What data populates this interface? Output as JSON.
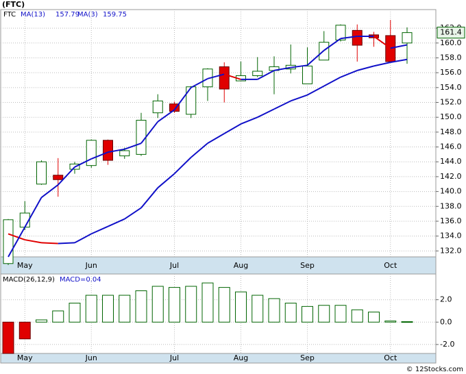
{
  "chart_data": [
    {
      "type": "candlestick",
      "title": "(FTC)",
      "symbol": "FTC",
      "categories": [
        null,
        "May",
        null,
        null,
        null,
        "Jun",
        null,
        null,
        null,
        null,
        "Jul",
        null,
        null,
        null,
        "Aug",
        null,
        null,
        null,
        "Sep",
        null,
        null,
        null,
        null,
        "Oct",
        null
      ],
      "open": [
        130.3,
        135.2,
        141.0,
        142.2,
        143.0,
        143.5,
        146.9,
        144.8,
        145.0,
        150.6,
        151.8,
        150.4,
        154.1,
        156.8,
        154.9,
        155.6,
        156.3,
        156.5,
        154.5,
        157.7,
        160.4,
        161.7,
        161.1,
        161.0,
        160.0
      ],
      "high": [
        136.3,
        138.7,
        144.2,
        144.5,
        144.0,
        147.0,
        147.0,
        145.9,
        150.6,
        153.1,
        152.1,
        154.2,
        156.6,
        157.4,
        157.5,
        158.1,
        158.2,
        159.8,
        159.4,
        161.6,
        162.5,
        162.5,
        161.5,
        163.1,
        162.1
      ],
      "low": [
        130.1,
        134.8,
        140.9,
        139.3,
        142.4,
        143.2,
        143.6,
        144.4,
        144.8,
        149.9,
        150.6,
        149.9,
        152.2,
        152.0,
        154.9,
        155.4,
        153.1,
        155.9,
        154.5,
        157.7,
        160.2,
        157.5,
        159.5,
        157.5,
        157.2
      ],
      "close": [
        136.2,
        137.1,
        144.0,
        141.6,
        143.7,
        146.9,
        144.2,
        145.5,
        149.6,
        152.2,
        150.8,
        154.1,
        156.5,
        153.8,
        155.6,
        156.2,
        156.8,
        157.0,
        156.9,
        160.1,
        162.4,
        159.7,
        160.7,
        157.5,
        161.4
      ],
      "up_color": "#006400",
      "down_color": "#e00000",
      "last_price": 161.4,
      "last_price_color": "#006400",
      "series": [
        {
          "name": "MA(13)",
          "last_value": 157.79,
          "color": "#1010c8",
          "falling_color": "#e00000",
          "values": [
            134.3,
            133.5,
            133.1,
            133.0,
            133.1,
            134.3,
            135.3,
            136.3,
            137.8,
            140.5,
            142.4,
            144.6,
            146.5,
            147.8,
            149.1,
            150.0,
            151.1,
            152.2,
            153.0,
            154.2,
            155.4,
            156.3,
            156.9,
            157.4,
            157.79
          ]
        },
        {
          "name": "MA(3)",
          "last_value": 159.75,
          "color": "#1010c8",
          "falling_color": "#e00000",
          "values": [
            131.2,
            135.2,
            139.2,
            140.9,
            143.3,
            144.4,
            145.3,
            145.7,
            146.5,
            149.4,
            151.0,
            154.0,
            155.2,
            155.8,
            155.1,
            155.1,
            156.3,
            156.7,
            157.0,
            159.0,
            160.6,
            160.9,
            160.9,
            159.3,
            159.75
          ]
        }
      ],
      "ylim": [
        131.2,
        164.5
      ],
      "yticks": [
        {
          "value": 132,
          "label": "132.0"
        },
        {
          "value": 134,
          "label": "134.0"
        },
        {
          "value": 136,
          "label": "136.0"
        },
        {
          "value": 138,
          "label": "138.0"
        },
        {
          "value": 140,
          "label": "140.0"
        },
        {
          "value": 142,
          "label": "142.0"
        },
        {
          "value": 144,
          "label": "144.0"
        },
        {
          "value": 146,
          "label": "146.0"
        },
        {
          "value": 148,
          "label": "148.0"
        },
        {
          "value": 150,
          "label": "150.0"
        },
        {
          "value": 152,
          "label": "152.0"
        },
        {
          "value": 154,
          "label": "154.0"
        },
        {
          "value": 156,
          "label": "156.0"
        },
        {
          "value": 158,
          "label": "158.0"
        },
        {
          "value": 160,
          "label": "160.0"
        },
        {
          "value": 162,
          "label": "162.0"
        }
      ],
      "grid": true
    },
    {
      "type": "bar",
      "title": "MACD(26,12,9)",
      "subtitle": "MACD=0.04",
      "categories": [
        null,
        "May",
        null,
        null,
        null,
        "Jun",
        null,
        null,
        null,
        null,
        "Jul",
        null,
        null,
        null,
        "Aug",
        null,
        null,
        null,
        "Sep",
        null,
        null,
        null,
        null,
        "Oct",
        null
      ],
      "values": [
        -2.8,
        -1.5,
        0.2,
        1.0,
        1.7,
        2.4,
        2.4,
        2.4,
        2.8,
        3.2,
        3.1,
        3.2,
        3.5,
        3.1,
        2.7,
        2.4,
        2.1,
        1.7,
        1.4,
        1.5,
        1.5,
        1.1,
        0.9,
        0.1,
        0.04
      ],
      "color": "#006400",
      "negative_color": "#e00000",
      "ylim": [
        -2.8,
        4.3
      ],
      "yticks": [
        {
          "value": -2,
          "label": "-2.0"
        },
        {
          "value": 0,
          "label": "0.0"
        },
        {
          "value": 2,
          "label": "2.0"
        }
      ],
      "grid": true
    },
    {
      "type": "credit",
      "text": "© 12Stocks.com"
    }
  ]
}
